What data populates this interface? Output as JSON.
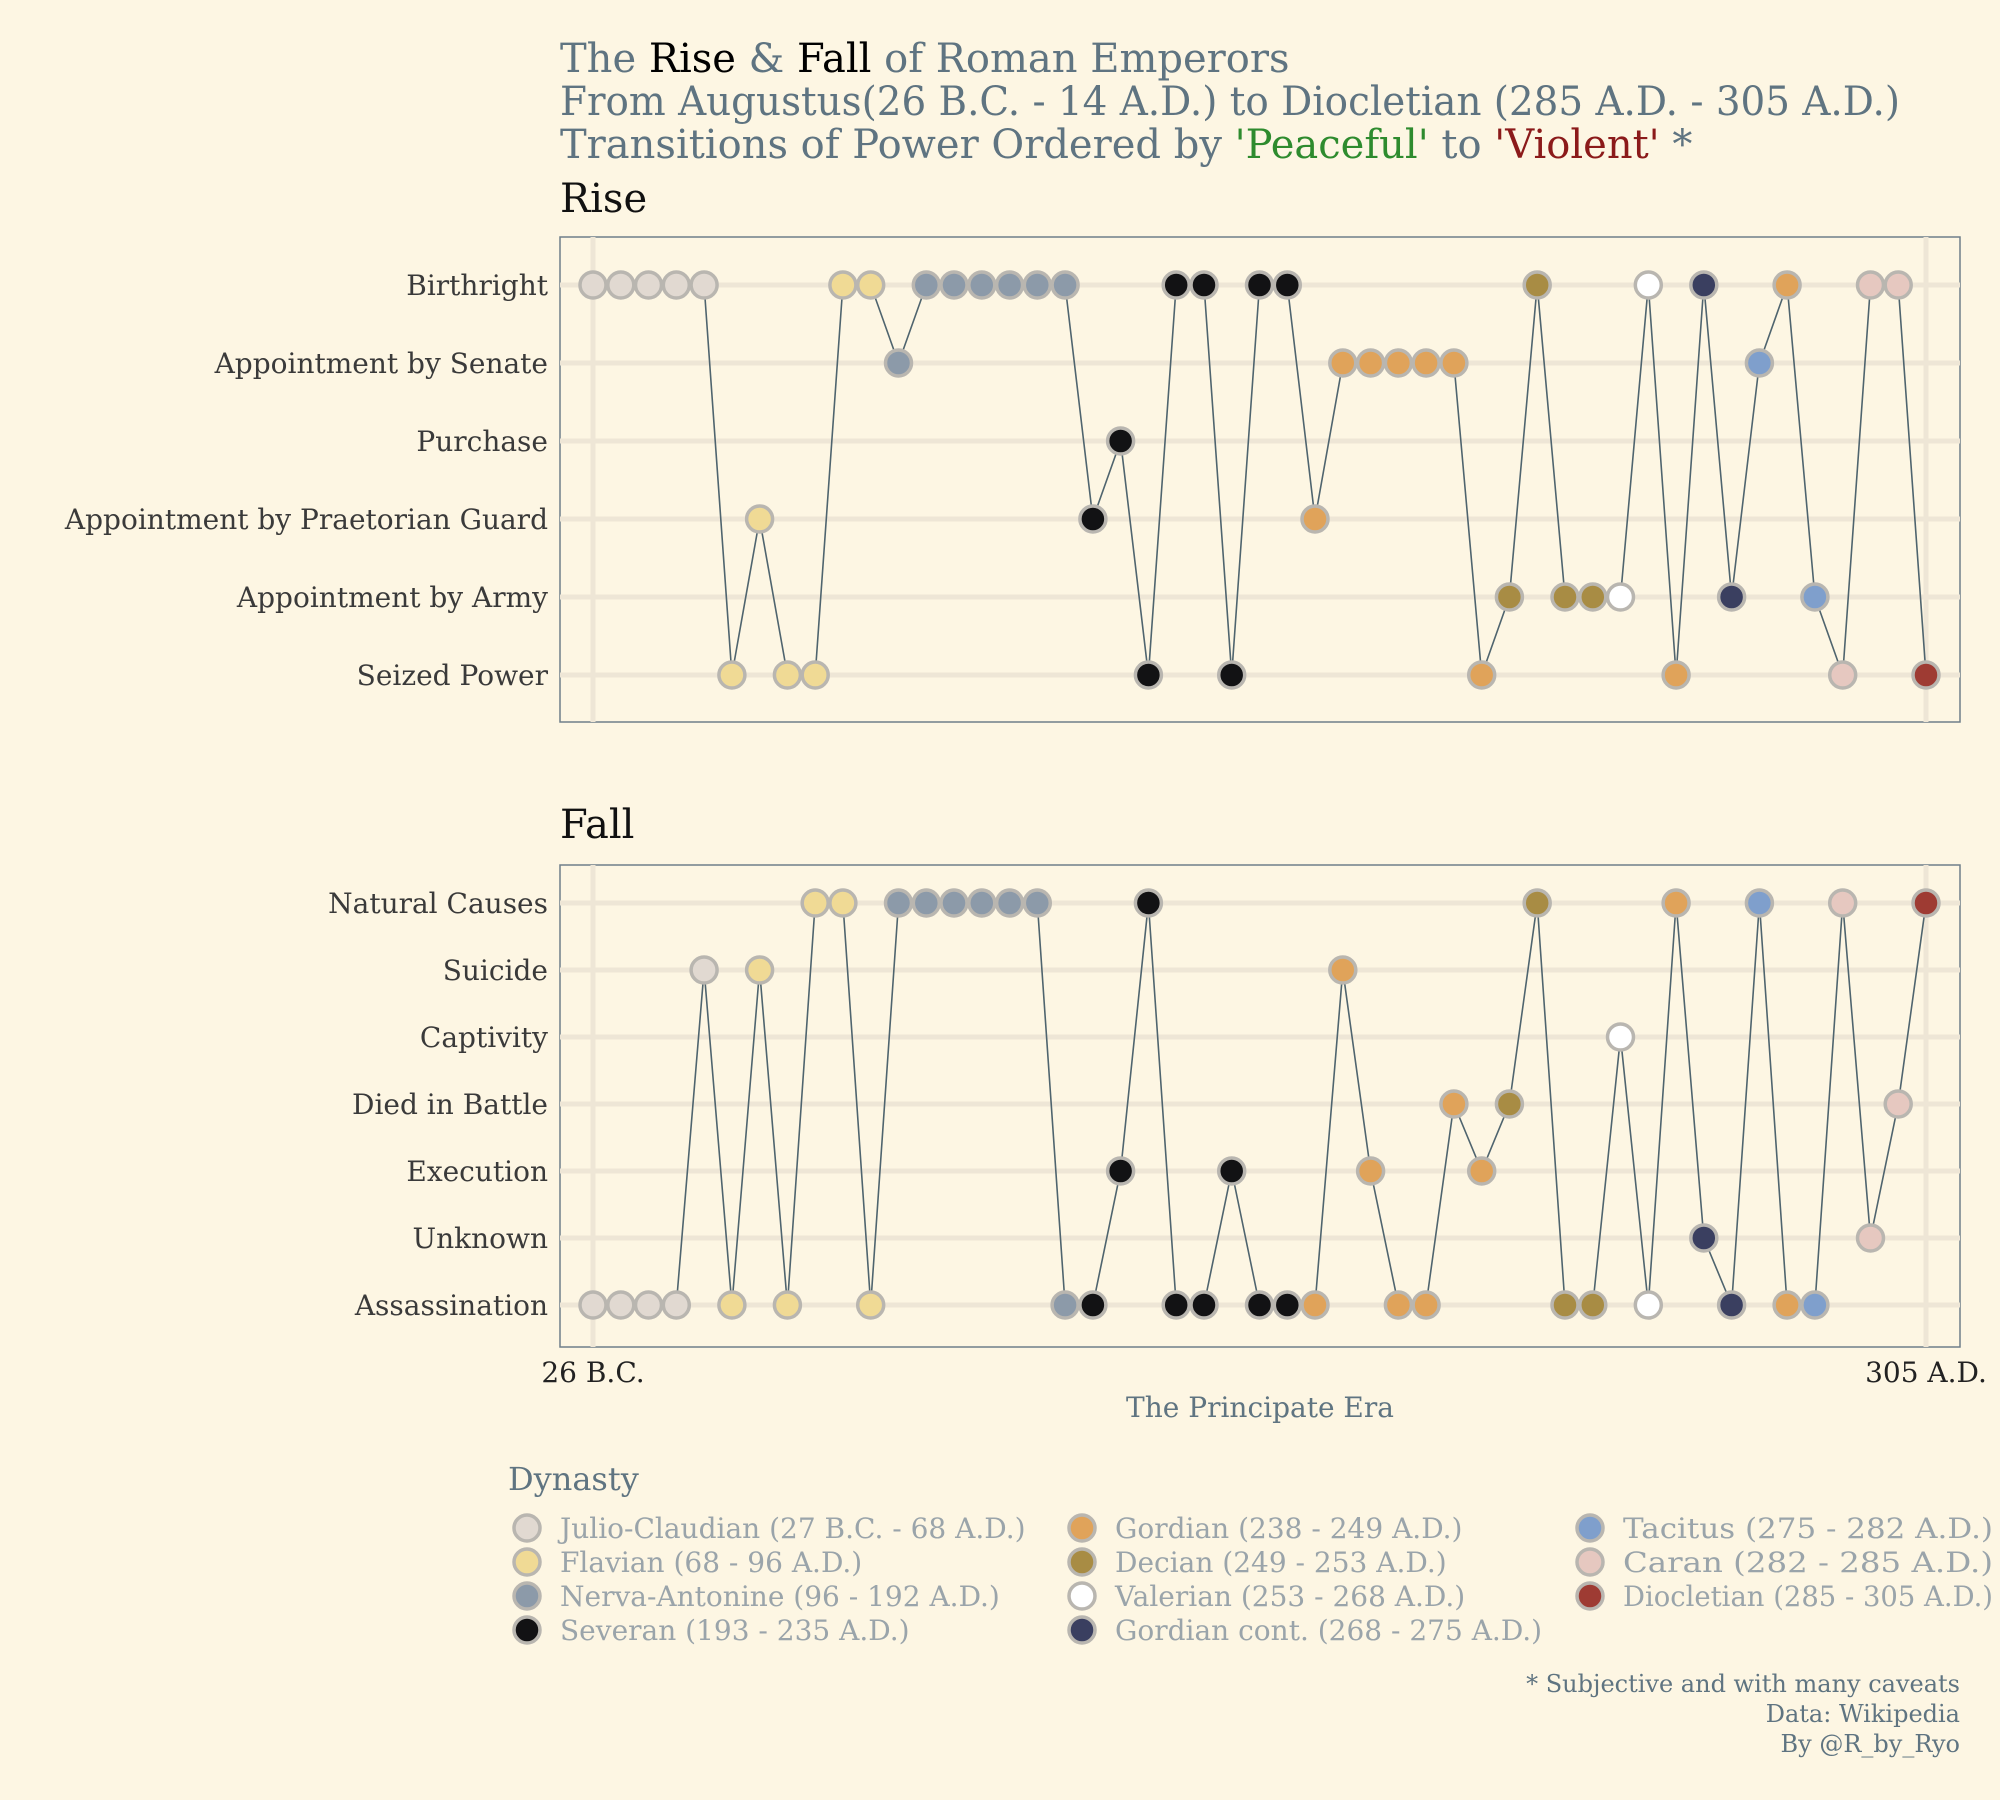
{
  "titles": {
    "line1": {
      "pre": "The ",
      "rise": "Rise",
      "amp": " & ",
      "fall": "Fall",
      "post": " of Roman Emperors"
    },
    "line2": "From Augustus(26 B.C. - 14 A.D.) to Diocletian (285 A.D. - 305 A.D.)",
    "line3": {
      "pre": "Transitions of Power Ordered by ",
      "peaceful": "'Peaceful'",
      "mid": " to ",
      "violent": "'Violent'",
      "post": " *"
    }
  },
  "caption": {
    "line1": "* Subjective and with many caveats",
    "line2": "Data: Wikipedia",
    "line3": "By @R_by_Ryo"
  },
  "chart_data": {
    "type": "scatter",
    "x_axis": {
      "label": "The Principate Era",
      "tick_labels": [
        "26 B.C.",
        "305 A.D."
      ],
      "range": [
        1,
        49
      ]
    },
    "grid": true,
    "legend": {
      "title": "Dynasty",
      "placement": "bottom",
      "entries": [
        {
          "key": "julio",
          "label": "Julio-Claudian (27 B.C. - 68 A.D.)",
          "color": "#e1d9d1"
        },
        {
          "key": "flavian",
          "label": "Flavian (68 - 96 A.D.)",
          "color": "#f0da95"
        },
        {
          "key": "nerva",
          "label": "Nerva-Antonine (96 - 192 A.D.)",
          "color": "#8c9aa9"
        },
        {
          "key": "severan",
          "label": "Severan (193 - 235 A.D.)",
          "color": "#121214"
        },
        {
          "key": "gordian",
          "label": "Gordian (238 - 249 A.D.)",
          "color": "#e0a35a"
        },
        {
          "key": "decian",
          "label": "Decian (249 - 253 A.D.)",
          "color": "#a88c44"
        },
        {
          "key": "valerian",
          "label": "Valerian (253 - 268 A.D.)",
          "color": "#ffffff"
        },
        {
          "key": "gordiancont",
          "label": "Gordian cont. (268 - 275 A.D.)",
          "color": "#3a3f60"
        },
        {
          "key": "tacitus",
          "label": "Tacitus (275 - 282 A.D.)",
          "color": "#7f9fcc"
        },
        {
          "key": "caran",
          "label": "Caran (282 - 285 A.D.)",
          "color": "#e6c8c0"
        },
        {
          "key": "diocletian",
          "label": "Diocletian (285 - 305 A.D.)",
          "color": "#9e3b33"
        }
      ]
    },
    "panels": [
      {
        "title": "Rise",
        "categories": [
          "Birthright",
          "Appointment by Senate",
          "Purchase",
          "Appointment by Praetorian Guard",
          "Appointment by Army",
          "Seized Power"
        ],
        "x": [
          1,
          2,
          3,
          4,
          5,
          6,
          7,
          8,
          9,
          10,
          11,
          12,
          13,
          14,
          15,
          16,
          17,
          18,
          19,
          20,
          21,
          22,
          23,
          24,
          25,
          26,
          27,
          28,
          29,
          30,
          31,
          32,
          33,
          34,
          35,
          36,
          37,
          38,
          39,
          40,
          41,
          42,
          43,
          44,
          45,
          46,
          47,
          48,
          49
        ],
        "y": [
          "Birthright",
          "Birthright",
          "Birthright",
          "Birthright",
          "Birthright",
          "Seized Power",
          "Appointment by Praetorian Guard",
          "Seized Power",
          "Seized Power",
          "Birthright",
          "Birthright",
          "Appointment by Senate",
          "Birthright",
          "Birthright",
          "Birthright",
          "Birthright",
          "Birthright",
          "Birthright",
          "Appointment by Praetorian Guard",
          "Purchase",
          "Seized Power",
          "Birthright",
          "Birthright",
          "Seized Power",
          "Birthright",
          "Birthright",
          "Appointment by Praetorian Guard",
          "Appointment by Senate",
          "Appointment by Senate",
          "Appointment by Senate",
          "Appointment by Senate",
          "Appointment by Senate",
          "Seized Power",
          "Appointment by Army",
          "Birthright",
          "Appointment by Army",
          "Appointment by Army",
          "Appointment by Army",
          "Birthright",
          "Seized Power",
          "Birthright",
          "Appointment by Army",
          "Appointment by Senate",
          "Birthright",
          "Appointment by Army",
          "Seized Power",
          "Birthright",
          "Birthright",
          "Seized Power"
        ],
        "dynasty": [
          "julio",
          "julio",
          "julio",
          "julio",
          "julio",
          "flavian",
          "flavian",
          "flavian",
          "flavian",
          "flavian",
          "flavian",
          "nerva",
          "nerva",
          "nerva",
          "nerva",
          "nerva",
          "nerva",
          "nerva",
          "severan",
          "severan",
          "severan",
          "severan",
          "severan",
          "severan",
          "severan",
          "severan",
          "gordian",
          "gordian",
          "gordian",
          "gordian",
          "gordian",
          "gordian",
          "gordian",
          "decian",
          "decian",
          "decian",
          "decian",
          "valerian",
          "valerian",
          "gordian",
          "gordiancont",
          "gordiancont",
          "tacitus",
          "gordian",
          "tacitus",
          "caran",
          "caran",
          "caran",
          "diocletian"
        ]
      },
      {
        "title": "Fall",
        "categories": [
          "Natural Causes",
          "Suicide",
          "Captivity",
          "Died in Battle",
          "Execution",
          "Unknown",
          "Assassination"
        ],
        "x": [
          1,
          2,
          3,
          4,
          5,
          6,
          7,
          8,
          9,
          10,
          11,
          12,
          13,
          14,
          15,
          16,
          17,
          18,
          19,
          20,
          21,
          22,
          23,
          24,
          25,
          26,
          27,
          28,
          29,
          30,
          31,
          32,
          33,
          34,
          35,
          36,
          37,
          38,
          39,
          40,
          41,
          42,
          43,
          44,
          45,
          46,
          47,
          48,
          49
        ],
        "y": [
          "Assassination",
          "Assassination",
          "Assassination",
          "Assassination",
          "Suicide",
          "Assassination",
          "Suicide",
          "Assassination",
          "Natural Causes",
          "Natural Causes",
          "Assassination",
          "Natural Causes",
          "Natural Causes",
          "Natural Causes",
          "Natural Causes",
          "Natural Causes",
          "Natural Causes",
          "Assassination",
          "Assassination",
          "Execution",
          "Natural Causes",
          "Assassination",
          "Assassination",
          "Execution",
          "Assassination",
          "Assassination",
          "Assassination",
          "Suicide",
          "Execution",
          "Assassination",
          "Assassination",
          "Died in Battle",
          "Execution",
          "Died in Battle",
          "Natural Causes",
          "Assassination",
          "Assassination",
          "Captivity",
          "Assassination",
          "Natural Causes",
          "Unknown",
          "Assassination",
          "Natural Causes",
          "Assassination",
          "Assassination",
          "Natural Causes",
          "Unknown",
          "Died in Battle",
          "Natural Causes"
        ],
        "dynasty": [
          "julio",
          "julio",
          "julio",
          "julio",
          "julio",
          "flavian",
          "flavian",
          "flavian",
          "flavian",
          "flavian",
          "flavian",
          "nerva",
          "nerva",
          "nerva",
          "nerva",
          "nerva",
          "nerva",
          "nerva",
          "severan",
          "severan",
          "severan",
          "severan",
          "severan",
          "severan",
          "severan",
          "severan",
          "gordian",
          "gordian",
          "gordian",
          "gordian",
          "gordian",
          "gordian",
          "gordian",
          "decian",
          "decian",
          "decian",
          "decian",
          "valerian",
          "valerian",
          "gordian",
          "gordiancont",
          "gordiancont",
          "tacitus",
          "gordian",
          "tacitus",
          "caran",
          "caran",
          "caran",
          "diocletian"
        ]
      }
    ]
  }
}
